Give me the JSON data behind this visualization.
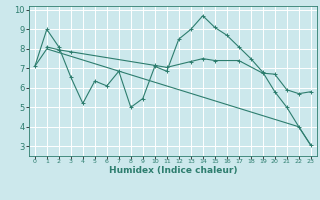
{
  "bg_color": "#cce8ec",
  "grid_color": "#ffffff",
  "line_color": "#2d7d6e",
  "xlabel": "Humidex (Indice chaleur)",
  "xlim": [
    -0.5,
    23.5
  ],
  "ylim": [
    2.5,
    10.2
  ],
  "yticks": [
    3,
    4,
    5,
    6,
    7,
    8,
    9,
    10
  ],
  "xticks": [
    0,
    1,
    2,
    3,
    4,
    5,
    6,
    7,
    8,
    9,
    10,
    11,
    12,
    13,
    14,
    15,
    16,
    17,
    18,
    19,
    20,
    21,
    22,
    23
  ],
  "line1_x": [
    0,
    1,
    2,
    3,
    4,
    5,
    6,
    7,
    8,
    9,
    10,
    11,
    12,
    13,
    14,
    15,
    16,
    17,
    18,
    19,
    20,
    21,
    22,
    23
  ],
  "line1_y": [
    7.1,
    9.0,
    8.1,
    6.55,
    5.2,
    6.35,
    6.1,
    6.85,
    5.0,
    5.45,
    7.1,
    6.85,
    8.5,
    9.0,
    9.7,
    9.1,
    8.7,
    8.1,
    7.5,
    6.8,
    5.8,
    5.0,
    4.0,
    3.05
  ],
  "line2_x": [
    1,
    2,
    3,
    10,
    11,
    13,
    14,
    15,
    17,
    19,
    20,
    21,
    22,
    23
  ],
  "line2_y": [
    8.1,
    7.95,
    7.85,
    7.15,
    7.05,
    7.35,
    7.5,
    7.4,
    7.4,
    6.75,
    6.7,
    5.9,
    5.7,
    5.8
  ],
  "line3_x": [
    0,
    1,
    22,
    23
  ],
  "line3_y": [
    7.1,
    8.0,
    4.0,
    3.05
  ]
}
